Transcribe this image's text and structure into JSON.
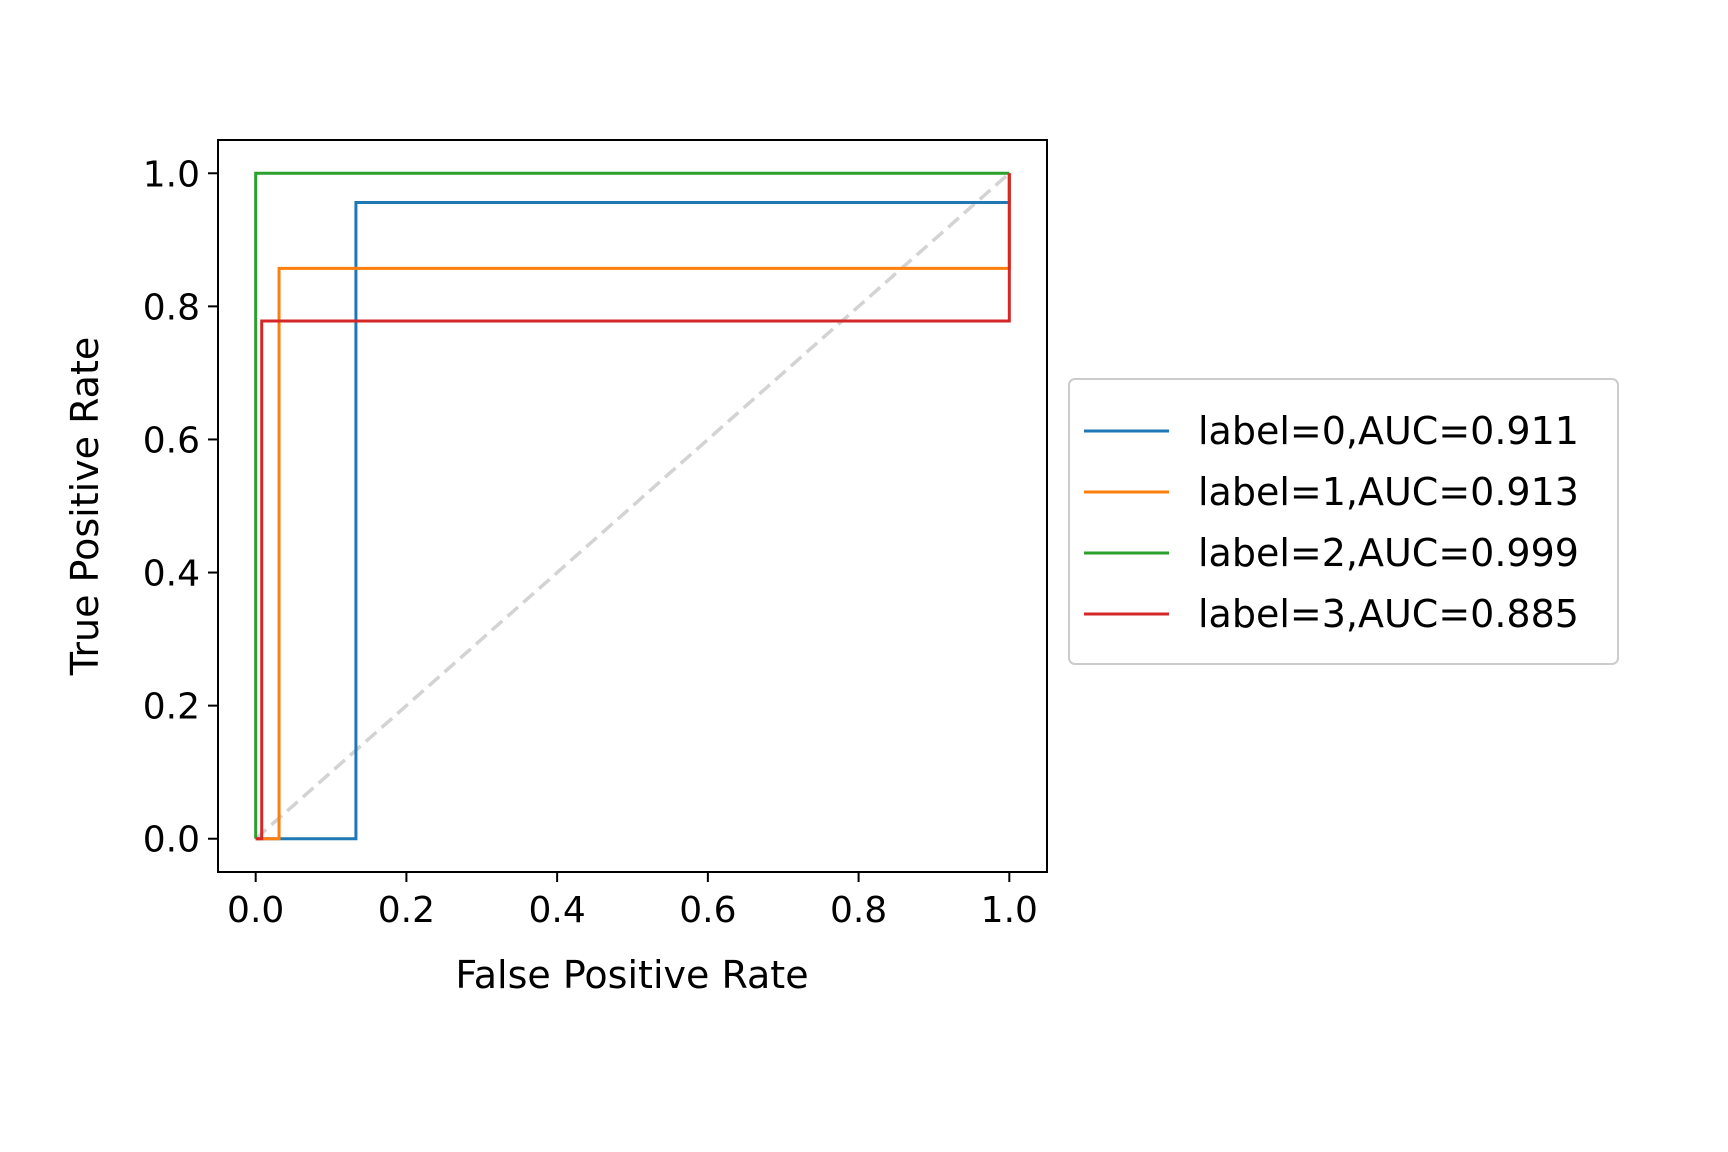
{
  "chart_data": {
    "type": "line",
    "title": "",
    "xlabel": "False Positive Rate",
    "ylabel": "True Positive Rate",
    "xlim": [
      -0.05,
      1.05
    ],
    "ylim": [
      -0.05,
      1.05
    ],
    "xticks": [
      "0.0",
      "0.2",
      "0.4",
      "0.6",
      "0.8",
      "1.0"
    ],
    "yticks": [
      "0.0",
      "0.2",
      "0.4",
      "0.6",
      "0.8",
      "1.0"
    ],
    "grid": false,
    "legend_position": "right",
    "series": [
      {
        "name": "label=0,AUC=0.911",
        "color": "#1f77b4",
        "x": [
          0.0,
          0.133,
          0.133,
          1.0,
          1.0
        ],
        "y": [
          0.0,
          0.0,
          0.956,
          0.956,
          1.0
        ]
      },
      {
        "name": "label=1,AUC=0.913",
        "color": "#ff7f0e",
        "x": [
          0.0,
          0.031,
          0.031,
          1.0,
          1.0
        ],
        "y": [
          0.0,
          0.0,
          0.857,
          0.857,
          1.0
        ]
      },
      {
        "name": "label=2,AUC=0.999",
        "color": "#2ca02c",
        "x": [
          0.0,
          0.0,
          1.0
        ],
        "y": [
          0.0,
          1.0,
          1.0
        ]
      },
      {
        "name": "label=3,AUC=0.885",
        "color": "#d62728",
        "x": [
          0.0,
          0.008,
          0.008,
          1.0,
          1.0
        ],
        "y": [
          0.0,
          0.0,
          0.778,
          0.778,
          1.0
        ]
      }
    ],
    "reference_line": {
      "color": "#d3d3d3",
      "style": "dashed",
      "x": [
        0,
        1
      ],
      "y": [
        0,
        1
      ]
    }
  }
}
